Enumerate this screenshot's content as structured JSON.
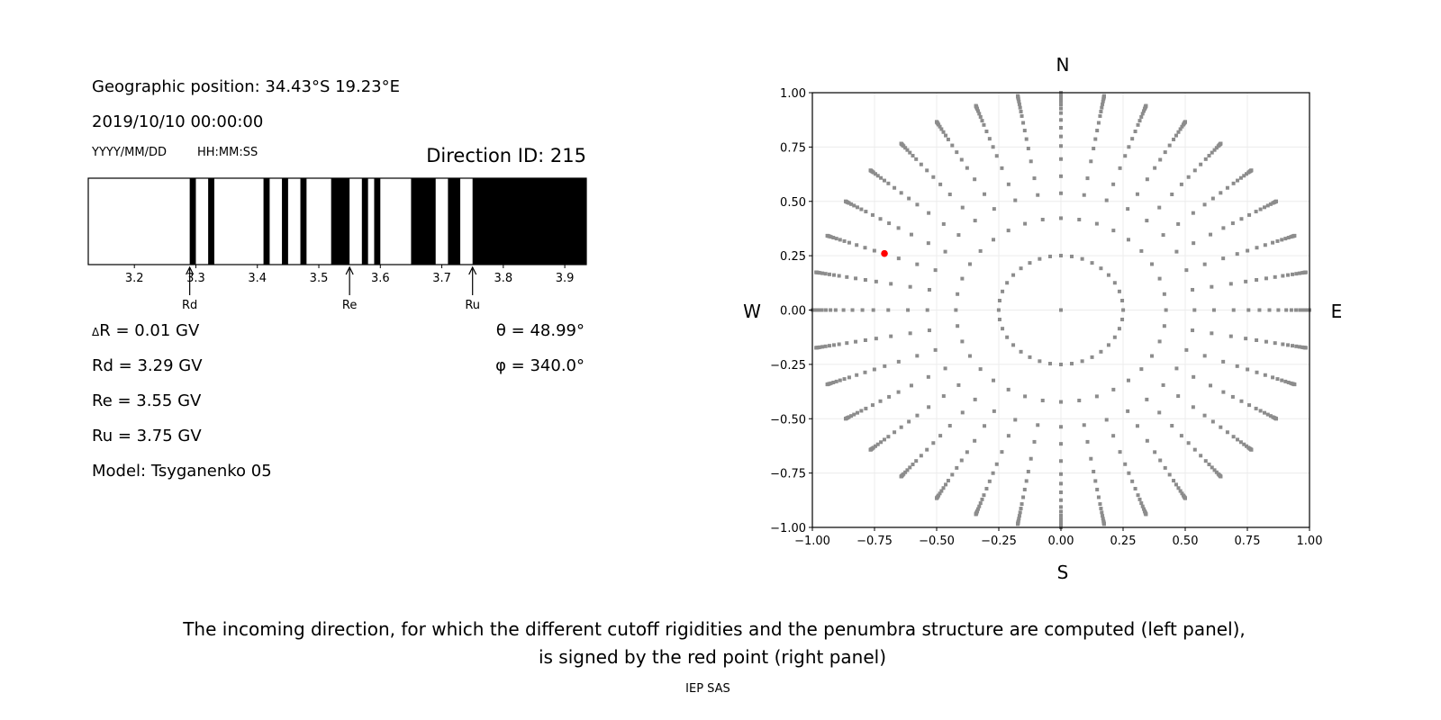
{
  "left_panel": {
    "geo_position": "Geographic position: 34.43°S 19.23°E",
    "datetime": "2019/10/10 00:00:00",
    "date_format": "YYYY/MM/DD",
    "time_format": "HH:MM:SS",
    "direction_id": "Direction ID: 215",
    "delta_r_symbol": "Δ",
    "delta_r": "R = 0.01 GV",
    "rd": "Rd = 3.29 GV",
    "re": "Re = 3.55 GV",
    "ru": "Ru = 3.75 GV",
    "model": "Model: Tsyganenko 05",
    "theta": "θ = 48.99°",
    "phi": "φ = 340.0°"
  },
  "chart_data": [
    {
      "type": "bar",
      "description_kind": "penumbra",
      "xlim": [
        3.125,
        3.935
      ],
      "xticks": [
        "3.2",
        "3.3",
        "3.4",
        "3.5",
        "3.6",
        "3.7",
        "3.8",
        "3.9"
      ],
      "forbidden_bands": [
        [
          3.29,
          3.3
        ],
        [
          3.32,
          3.33
        ],
        [
          3.41,
          3.42
        ],
        [
          3.44,
          3.45
        ],
        [
          3.47,
          3.48
        ],
        [
          3.52,
          3.55
        ],
        [
          3.57,
          3.58
        ],
        [
          3.59,
          3.6
        ],
        [
          3.65,
          3.69
        ],
        [
          3.71,
          3.73
        ],
        [
          3.75,
          3.935
        ]
      ],
      "band_color": "#000000",
      "markers": [
        {
          "label": "Rd",
          "value": 3.29
        },
        {
          "label": "Re",
          "value": 3.55
        },
        {
          "label": "Ru",
          "value": 3.75
        }
      ]
    },
    {
      "type": "scatter",
      "xlim": [
        -1,
        1
      ],
      "ylim": [
        -1,
        1
      ],
      "xticks": [
        "−1.00",
        "−0.75",
        "−0.50",
        "−0.25",
        "0.00",
        "0.25",
        "0.50",
        "0.75",
        "1.00"
      ],
      "yticks": [
        "−1.00",
        "−0.75",
        "−0.50",
        "−0.25",
        "0.00",
        "0.25",
        "0.50",
        "0.75",
        "1.00"
      ],
      "grid": true,
      "compass": {
        "north": "N",
        "south": "S",
        "west": "W",
        "east": "E"
      },
      "grid_zenith_deg": [
        14.5,
        25,
        32.5,
        38,
        44,
        49,
        53,
        57,
        61,
        65,
        68,
        71,
        74,
        77,
        80,
        82,
        84,
        86,
        88,
        90
      ],
      "grid_azimuth_step_deg": 10,
      "grid_point_color": "#8c8c8c",
      "selected_point": {
        "x": -0.71,
        "y": 0.26,
        "color": "#ff0000"
      }
    }
  ],
  "caption": {
    "line1": "The incoming direction, for which the different cutoff rigidities and the penumbra structure are computed (left panel),",
    "line2": "is signed by the red point (right panel)",
    "credit": "IEP SAS"
  }
}
